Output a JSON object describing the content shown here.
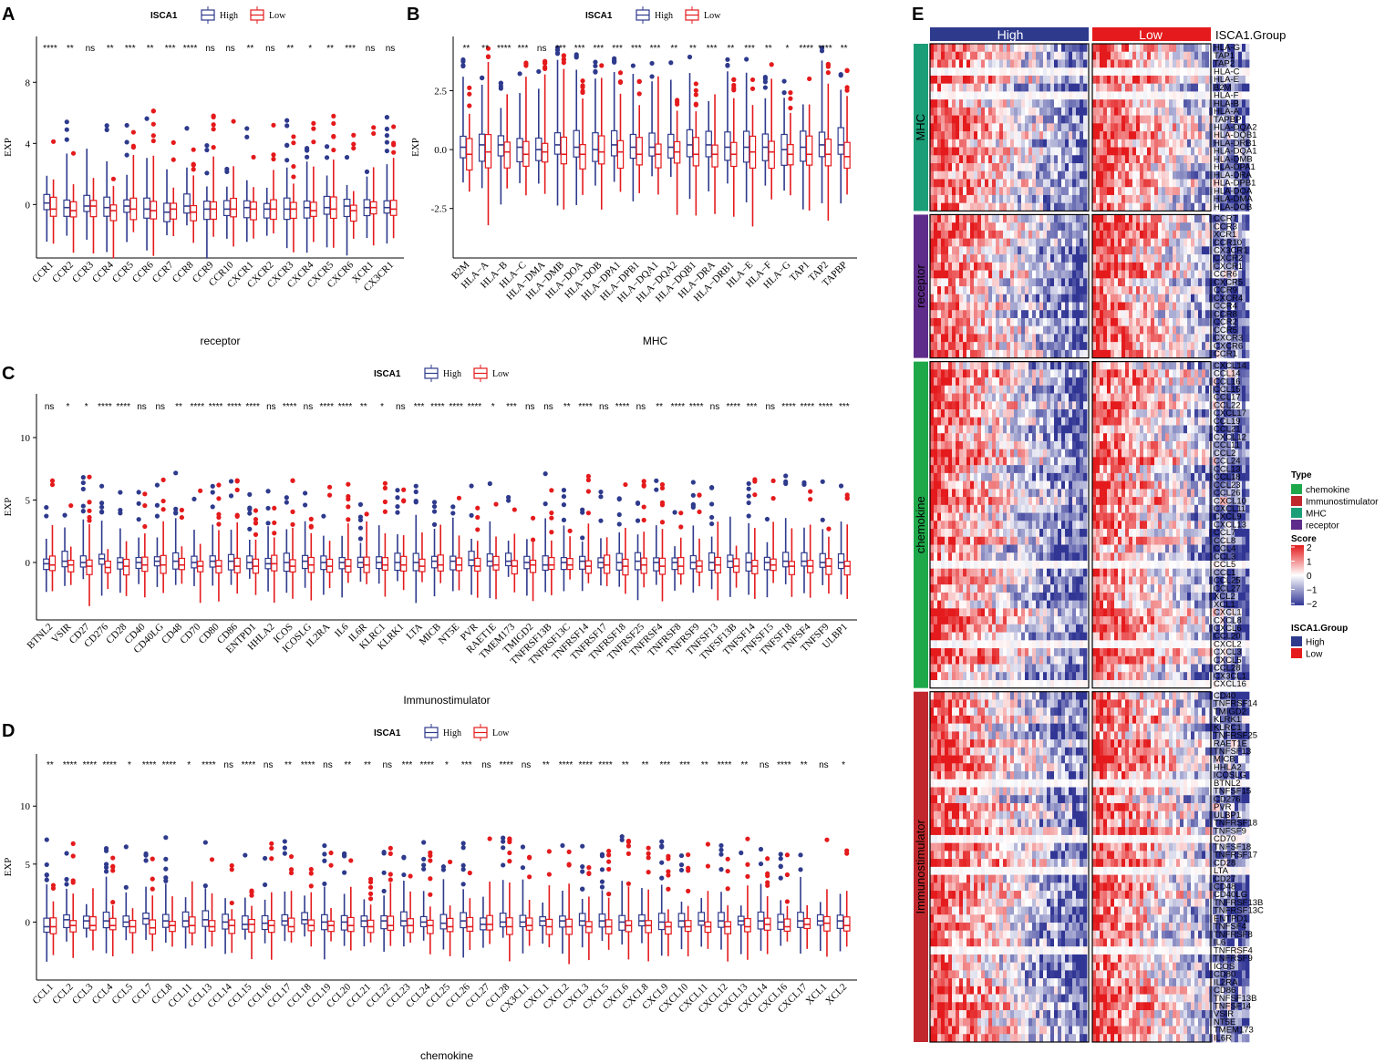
{
  "colors": {
    "high": "#2E3A8C",
    "low": "#E41A1C",
    "mhc": "#1B9E77",
    "receptor": "#5E2C8A",
    "chemokine": "#1EA84A",
    "immuno": "#C0282D"
  },
  "chart_data": [
    {
      "panel": "A",
      "type": "box",
      "title": "",
      "legend_title": "ISCA1",
      "legend": [
        "High",
        "Low"
      ],
      "xlabel": "receptor",
      "ylabel": "EXP",
      "ylim": [
        -3.5,
        11
      ],
      "yticks": [
        0,
        4,
        8
      ],
      "categories": [
        "CCR1",
        "CCR2",
        "CCR3",
        "CCR4",
        "CCR5",
        "CCR6",
        "CCR7",
        "CCR8",
        "CCR9",
        "CCR10",
        "CXCR1",
        "CXCR2",
        "CXCR3",
        "CXCR4",
        "CXCR5",
        "CXCR6",
        "XCR1",
        "CX3CR1"
      ],
      "significance": [
        "****",
        "**",
        "ns",
        "**",
        "***",
        "**",
        "***",
        "****",
        "ns",
        "ns",
        "**",
        "ns",
        "**",
        "*",
        "**",
        "***",
        "ns",
        "ns"
      ],
      "series": [
        {
          "name": "High",
          "medians": [
            0.1,
            -0.2,
            -0.1,
            -0.2,
            -0.1,
            -0.3,
            -0.5,
            -0.1,
            -0.3,
            -0.3,
            -0.2,
            -0.3,
            -0.3,
            -0.2,
            -0.2,
            -0.1,
            -0.2,
            -0.2
          ]
        },
        {
          "name": "Low",
          "medians": [
            -0.3,
            -0.4,
            -0.1,
            -0.4,
            -0.3,
            -0.4,
            -0.3,
            -0.5,
            -0.3,
            -0.3,
            -0.3,
            -0.3,
            -0.3,
            -0.4,
            -0.3,
            -0.4,
            -0.2,
            -0.3
          ]
        }
      ]
    },
    {
      "panel": "B",
      "type": "box",
      "title": "",
      "legend_title": "ISCA1",
      "legend": [
        "High",
        "Low"
      ],
      "xlabel": "MHC",
      "ylabel": "EXP",
      "ylim": [
        -4.6,
        4.8
      ],
      "yticks": [
        -2.5,
        0.0,
        2.5
      ],
      "ytick_labels": [
        "-2.5",
        "0.0",
        "2.5"
      ],
      "categories": [
        "B2M",
        "HLA−A",
        "HLA−B",
        "HLA−C",
        "HLA−DMA",
        "HLA−DMB",
        "HLA−DOA",
        "HLA−DOB",
        "HLA−DPA1",
        "HLA−DPB1",
        "HLA−DQA1",
        "HLA−DQA2",
        "HLA−DQB1",
        "HLA−DRA",
        "HLA−DRB1",
        "HLA−E",
        "HLA−F",
        "HLA−G",
        "TAP1",
        "TAP2",
        "TAPBP"
      ],
      "significance": [
        "**",
        "**",
        "****",
        "***",
        "ns",
        "***",
        "***",
        "***",
        "***",
        "***",
        "***",
        "**",
        "**",
        "***",
        "**",
        "***",
        "**",
        "*",
        "****",
        "****",
        "**"
      ],
      "series": [
        {
          "name": "High",
          "medians": [
            0.1,
            0.2,
            0.2,
            0.1,
            0.0,
            0.2,
            0.1,
            0.0,
            0.2,
            0.1,
            0.1,
            0.1,
            0.2,
            0.2,
            0.1,
            0.1,
            0.1,
            0.0,
            0.1,
            0.2,
            0.2
          ]
        },
        {
          "name": "Low",
          "medians": [
            -0.2,
            -0.1,
            -0.1,
            -0.2,
            -0.1,
            -0.2,
            -0.2,
            -0.1,
            -0.1,
            -0.2,
            -0.2,
            -0.1,
            -0.2,
            -0.2,
            -0.2,
            -0.1,
            -0.1,
            -0.2,
            -0.2,
            -0.2,
            -0.3
          ]
        }
      ]
    },
    {
      "panel": "C",
      "type": "box",
      "title": "",
      "legend_title": "ISCA1",
      "legend": [
        "High",
        "Low"
      ],
      "xlabel": "Immunostimulator",
      "ylabel": "EXP",
      "ylim": [
        -4.6,
        13.5
      ],
      "yticks": [
        0,
        5,
        10
      ],
      "categories": [
        "BTNL2",
        "VSIR",
        "CD27",
        "CD276",
        "CD28",
        "CD40",
        "CD40LG",
        "CD48",
        "CD70",
        "CD80",
        "CD86",
        "ENTPD1",
        "HHLA2",
        "ICOS",
        "ICOSLG",
        "IL2RA",
        "IL6",
        "IL6R",
        "KLRC1",
        "KLRK1",
        "LTA",
        "MICB",
        "NT5E",
        "PVR",
        "RAET1E",
        "TMEM173",
        "TMIGD2",
        "TNFRSF13B",
        "TNFRSF13C",
        "TNFRSF14",
        "TNFRSF17",
        "TNFRSF18",
        "TNFRSF25",
        "TNFRSF4",
        "TNFRSF8",
        "TNFRSF9",
        "TNFSF13",
        "TNFSF13B",
        "TNFSF14",
        "TNFSF15",
        "TNFSF18",
        "TNFSF4",
        "TNFSF9",
        "ULBP1"
      ],
      "significance": [
        "ns",
        "*",
        "*",
        "****",
        "****",
        "ns",
        "ns",
        "**",
        "****",
        "****",
        "****",
        "****",
        "ns",
        "****",
        "ns",
        "****",
        "****",
        "**",
        "*",
        "ns",
        "***",
        "****",
        "****",
        "****",
        "*",
        "***",
        "ns",
        "ns",
        "**",
        "****",
        "ns",
        "****",
        "ns",
        "**",
        "****",
        "****",
        "ns",
        "****",
        "***",
        "ns",
        "****",
        "****",
        "****",
        "***"
      ],
      "series": [
        {
          "name": "High",
          "medians": [
            -0.1,
            0.1,
            0.0,
            0.3,
            0.0,
            0.0,
            0.1,
            0.1,
            0.0,
            0.1,
            0.1,
            0.0,
            -0.1,
            0.0,
            0.1,
            0.0,
            0.0,
            0.0,
            0.0,
            0.0,
            0.0,
            0.1,
            0.1,
            0.2,
            0.1,
            0.1,
            0.0,
            -0.2,
            0.0,
            0.1,
            0.0,
            0.0,
            0.1,
            0.0,
            0.0,
            0.0,
            0.0,
            0.1,
            0.0,
            0.0,
            0.1,
            0.1,
            0.0,
            0.0
          ]
        },
        {
          "name": "Low",
          "medians": [
            -0.2,
            -0.2,
            -0.3,
            -0.4,
            -0.3,
            -0.2,
            -0.2,
            -0.2,
            -0.3,
            -0.3,
            -0.3,
            -0.3,
            -0.1,
            -0.3,
            -0.2,
            -0.3,
            -0.3,
            -0.2,
            -0.2,
            -0.2,
            -0.3,
            -0.2,
            -0.2,
            -0.3,
            -0.2,
            -0.3,
            -0.2,
            -0.2,
            -0.2,
            -0.3,
            -0.2,
            -0.3,
            -0.2,
            -0.3,
            -0.3,
            -0.3,
            -0.2,
            -0.3,
            -0.3,
            -0.2,
            -0.3,
            -0.3,
            -0.3,
            -0.3
          ]
        }
      ]
    },
    {
      "panel": "D",
      "type": "box",
      "title": "",
      "legend_title": "ISCA1",
      "legend": [
        "High",
        "Low"
      ],
      "xlabel": "chemokine",
      "ylabel": "EXP",
      "ylim": [
        -5.0,
        14.5
      ],
      "yticks": [
        0,
        5,
        10
      ],
      "categories": [
        "CCL1",
        "CCL2",
        "CCL3",
        "CCL4",
        "CCL5",
        "CCL7",
        "CCL8",
        "CCL11",
        "CCL13",
        "CCL14",
        "CCL15",
        "CCL16",
        "CCL17",
        "CCL18",
        "CCL19",
        "CCL20",
        "CCL21",
        "CCL22",
        "CCL23",
        "CCL24",
        "CCL25",
        "CCL26",
        "CCL27",
        "CCL28",
        "CX3CL1",
        "CXCL1",
        "CXCL2",
        "CXCL3",
        "CXCL5",
        "CXCL6",
        "CXCL8",
        "CXCL9",
        "CXCL10",
        "CXCL11",
        "CXCL12",
        "CXCL13",
        "CXCL14",
        "CXCL16",
        "CXCL17",
        "XCL1",
        "XCL2"
      ],
      "significance": [
        "**",
        "****",
        "****",
        "****",
        "*",
        "****",
        "****",
        "*",
        "****",
        "ns",
        "****",
        "ns",
        "**",
        "****",
        "ns",
        "**",
        "**",
        "ns",
        "***",
        "****",
        "*",
        "***",
        "ns",
        "****",
        "ns",
        "**",
        "****",
        "****",
        "****",
        "**",
        "**",
        "***",
        "***",
        "**",
        "****",
        "**",
        "ns",
        "****",
        "**",
        "ns",
        "*"
      ],
      "series": [
        {
          "name": "High",
          "medians": [
            -0.4,
            0.2,
            0.1,
            0.1,
            0.0,
            0.3,
            0.1,
            0.1,
            0.2,
            0.0,
            -0.2,
            -0.1,
            0.1,
            0.2,
            0.0,
            0.0,
            0.1,
            0.1,
            0.1,
            0.0,
            -0.1,
            0.1,
            -0.2,
            0.0,
            0.0,
            0.1,
            0.1,
            0.1,
            0.1,
            0.0,
            0.1,
            0.0,
            0.1,
            0.1,
            0.1,
            0.1,
            0.1,
            0.0,
            0.1,
            0.1,
            0.1
          ]
        },
        {
          "name": "Low",
          "medians": [
            -0.4,
            -0.3,
            -0.3,
            -0.3,
            -0.4,
            -0.5,
            -0.3,
            -0.3,
            -0.4,
            -0.3,
            -0.2,
            -0.3,
            -0.4,
            -0.3,
            -0.3,
            -0.3,
            -0.4,
            -0.3,
            -0.3,
            -0.3,
            -0.4,
            -0.4,
            -0.2,
            -0.4,
            -0.3,
            -0.4,
            -0.4,
            -0.4,
            -0.4,
            -0.3,
            -0.3,
            -0.4,
            -0.4,
            -0.4,
            -0.4,
            -0.4,
            -0.2,
            -0.4,
            -0.2,
            -0.1,
            -0.3
          ]
        }
      ]
    },
    {
      "panel": "E",
      "type": "heatmap",
      "column_groups": [
        "High",
        "Low"
      ],
      "column_group_title": "ISCA1.Group",
      "row_groups": [
        {
          "name": "MHC",
          "type": "MHC",
          "rows": [
            "HLA-G",
            "TAP1",
            "TAP2",
            "HLA-C",
            "HLA-E",
            "B2M",
            "HLA-F",
            "HLA-B",
            "HLA-A",
            "TAPBP",
            "HLA-DQA2",
            "HLA-DQB1",
            "HLA-DRB1",
            "HLA-DQA1",
            "HLA-DMB",
            "HLA-DPA1",
            "HLA-DRA",
            "HLA-DPB1",
            "HLA-DOA",
            "HLA-DMA",
            "HLA-DOB"
          ]
        },
        {
          "name": "receptor",
          "type": "receptor",
          "rows": [
            "CCR7",
            "CCR3",
            "XCR1",
            "CCR10",
            "CX3CR1",
            "CXCR2",
            "CXCR1",
            "CCR6",
            "CXCR5",
            "CCR9",
            "CXCR4",
            "CCR4",
            "CCR8",
            "CCR2",
            "CCR5",
            "CXCR3",
            "CXCR6",
            "CCR1"
          ]
        },
        {
          "name": "chemokine",
          "type": "chemokine",
          "rows": [
            "CXCL14",
            "CCL14",
            "CCL16",
            "CCL15",
            "CCL17",
            "CCL22",
            "CXCL17",
            "CCL19",
            "CCL21",
            "CXCL12",
            "CCL11",
            "CCL2",
            "CCL24",
            "CCL13",
            "CCL18",
            "CCL23",
            "CCL26",
            "CXCL10",
            "CXCL11",
            "CXCL9",
            "CXCL13",
            "CCL7",
            "CCL8",
            "CCL4",
            "CCL3",
            "CCL5",
            "CCL1",
            "CCL25",
            "CCL27",
            "XCL2",
            "XCL1",
            "CXCL1",
            "CXCL8",
            "CXCL6",
            "CCL20",
            "CXCL2",
            "CXCL3",
            "CXCL5",
            "CCL28",
            "CX3CL1",
            "CXCL16"
          ]
        },
        {
          "name": "Immunostimulator",
          "type": "Immunostimulator",
          "rows": [
            "CD40",
            "TNFRSF14",
            "TMIGD2",
            "KLRK1",
            "KLRC1",
            "TNFRSF25",
            "RAET1E",
            "TNFSF13",
            "MICB",
            "HHLA2",
            "ICOSLG",
            "BTNL2",
            "TNFSF15",
            "CD276",
            "PVR",
            "ULBP1",
            "TNFRSF18",
            "TNFSF9",
            "CD70",
            "TNFSF18",
            "TNFRSF17",
            "CD28",
            "LTA",
            "CD27",
            "CD48",
            "CD40LG",
            "TNFRSF13B",
            "TNFRSF13C",
            "ENTPD1",
            "TNFSF4",
            "TNFRSF8",
            "IL6",
            "TNFRSF4",
            "TNFRSF9",
            "ICOS",
            "CD80",
            "IL2RA",
            "CD86",
            "TNFSF13B",
            "TNFSF14",
            "VSIR",
            "NT5E",
            "TMEM173",
            "IL6R"
          ]
        }
      ],
      "legend": {
        "type_title": "Type",
        "types": [
          "chemokine",
          "Immunostimulator",
          "MHC",
          "receptor"
        ],
        "score_title": "Score",
        "score_range": [
          -2,
          2
        ],
        "score_ticks": [
          "2",
          "1",
          "0",
          "−1",
          "−2"
        ],
        "group_title": "ISCA1.Group",
        "groups": [
          "High",
          "Low"
        ]
      }
    }
  ]
}
